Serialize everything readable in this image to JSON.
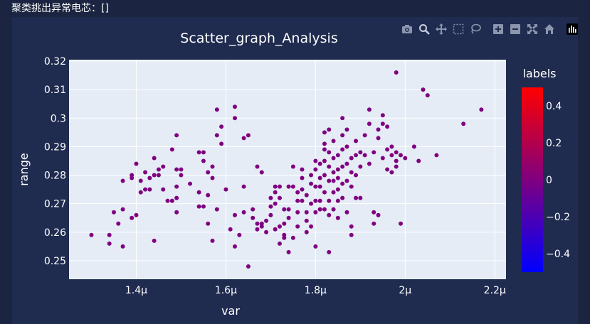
{
  "header": {
    "text": "聚类挑出异常电芯：[]"
  },
  "toolbar": {
    "items": [
      {
        "name": "camera-icon"
      },
      {
        "name": "zoom-icon"
      },
      {
        "name": "pan-icon"
      },
      {
        "name": "box-select-icon"
      },
      {
        "name": "lasso-select-icon"
      },
      {
        "name": "zoom-in-icon"
      },
      {
        "name": "zoom-out-icon"
      },
      {
        "name": "autoscale-icon"
      },
      {
        "name": "reset-axes-icon"
      },
      {
        "name": "plotly-logo-icon"
      }
    ]
  },
  "colors": {
    "page_bg": "#1b2541",
    "panel_bg": "#1f2b4f",
    "plot_bg": "#e5ecf6",
    "marker": "#800080",
    "text": "#ffffff"
  },
  "chart_data": {
    "type": "scatter",
    "title": "Scatter_graph_Analysis",
    "xlabel": "var",
    "ylabel": "range",
    "xlim": [
      1.25,
      2.225
    ],
    "ylim": [
      0.2435,
      0.3205
    ],
    "x_unit_suffix": "μ",
    "xticks": [
      1.4,
      1.6,
      1.8,
      2.0,
      2.2
    ],
    "xtick_labels": [
      "1.4μ",
      "1.6μ",
      "1.8μ",
      "2μ",
      "2.2μ"
    ],
    "yticks": [
      0.25,
      0.26,
      0.27,
      0.28,
      0.29,
      0.3,
      0.31,
      0.32
    ],
    "ytick_labels": [
      "0.25",
      "0.26",
      "0.27",
      "0.28",
      "0.29",
      "0.3",
      "0.31",
      "0.32"
    ],
    "colorbar": {
      "title": "labels",
      "ticks": [
        0.4,
        0.2,
        0,
        -0.2,
        -0.4
      ],
      "tick_labels": [
        "0.4",
        "0.2",
        "0",
        "−0.2",
        "−0.4"
      ],
      "range": [
        -0.5,
        0.5
      ],
      "colors": [
        "#0000ff",
        "#ff0000"
      ]
    },
    "points": [
      [
        1.3,
        0.259
      ],
      [
        1.34,
        0.256
      ],
      [
        1.34,
        0.259
      ],
      [
        1.35,
        0.267
      ],
      [
        1.36,
        0.263
      ],
      [
        1.37,
        0.255
      ],
      [
        1.37,
        0.268
      ],
      [
        1.37,
        0.278
      ],
      [
        1.39,
        0.265
      ],
      [
        1.39,
        0.279
      ],
      [
        1.39,
        0.28
      ],
      [
        1.4,
        0.284
      ],
      [
        1.4,
        0.266
      ],
      [
        1.41,
        0.278
      ],
      [
        1.41,
        0.274
      ],
      [
        1.42,
        0.275
      ],
      [
        1.42,
        0.281
      ],
      [
        1.43,
        0.275
      ],
      [
        1.43,
        0.279
      ],
      [
        1.44,
        0.28
      ],
      [
        1.44,
        0.286
      ],
      [
        1.44,
        0.257
      ],
      [
        1.45,
        0.28
      ],
      [
        1.45,
        0.282
      ],
      [
        1.46,
        0.283
      ],
      [
        1.46,
        0.275
      ],
      [
        1.47,
        0.271
      ],
      [
        1.48,
        0.271
      ],
      [
        1.48,
        0.289
      ],
      [
        1.49,
        0.294
      ],
      [
        1.49,
        0.282
      ],
      [
        1.49,
        0.276
      ],
      [
        1.49,
        0.272
      ],
      [
        1.49,
        0.267
      ],
      [
        1.5,
        0.282
      ],
      [
        1.5,
        0.28
      ],
      [
        1.52,
        0.277
      ],
      [
        1.54,
        0.288
      ],
      [
        1.54,
        0.274
      ],
      [
        1.54,
        0.269
      ],
      [
        1.55,
        0.288
      ],
      [
        1.55,
        0.285
      ],
      [
        1.55,
        0.269
      ],
      [
        1.56,
        0.263
      ],
      [
        1.56,
        0.273
      ],
      [
        1.56,
        0.281
      ],
      [
        1.57,
        0.283
      ],
      [
        1.57,
        0.279
      ],
      [
        1.57,
        0.257
      ],
      [
        1.58,
        0.303
      ],
      [
        1.58,
        0.294
      ],
      [
        1.58,
        0.268
      ],
      [
        1.59,
        0.297
      ],
      [
        1.59,
        0.291
      ],
      [
        1.6,
        0.275
      ],
      [
        1.61,
        0.261
      ],
      [
        1.62,
        0.255
      ],
      [
        1.62,
        0.304
      ],
      [
        1.62,
        0.3
      ],
      [
        1.62,
        0.266
      ],
      [
        1.63,
        0.259
      ],
      [
        1.64,
        0.293
      ],
      [
        1.64,
        0.276
      ],
      [
        1.64,
        0.267
      ],
      [
        1.65,
        0.294
      ],
      [
        1.65,
        0.248
      ],
      [
        1.66,
        0.268
      ],
      [
        1.66,
        0.265
      ],
      [
        1.67,
        0.263
      ],
      [
        1.67,
        0.261
      ],
      [
        1.67,
        0.283
      ],
      [
        1.68,
        0.281
      ],
      [
        1.68,
        0.263
      ],
      [
        1.68,
        0.262
      ],
      [
        1.69,
        0.264
      ],
      [
        1.69,
        0.26
      ],
      [
        1.7,
        0.266
      ],
      [
        1.7,
        0.269
      ],
      [
        1.7,
        0.272
      ],
      [
        1.71,
        0.276
      ],
      [
        1.71,
        0.274
      ],
      [
        1.71,
        0.27
      ],
      [
        1.71,
        0.261
      ],
      [
        1.72,
        0.276
      ],
      [
        1.72,
        0.272
      ],
      [
        1.72,
        0.256
      ],
      [
        1.72,
        0.262
      ],
      [
        1.73,
        0.268
      ],
      [
        1.73,
        0.263
      ],
      [
        1.73,
        0.259
      ],
      [
        1.73,
        0.258
      ],
      [
        1.74,
        0.276
      ],
      [
        1.74,
        0.268
      ],
      [
        1.74,
        0.265
      ],
      [
        1.74,
        0.253
      ],
      [
        1.75,
        0.283
      ],
      [
        1.75,
        0.276
      ],
      [
        1.75,
        0.258
      ],
      [
        1.76,
        0.274
      ],
      [
        1.76,
        0.271
      ],
      [
        1.76,
        0.267
      ],
      [
        1.76,
        0.262
      ],
      [
        1.77,
        0.282
      ],
      [
        1.77,
        0.279
      ],
      [
        1.77,
        0.275
      ],
      [
        1.77,
        0.271
      ],
      [
        1.78,
        0.273
      ],
      [
        1.78,
        0.267
      ],
      [
        1.78,
        0.264
      ],
      [
        1.78,
        0.26
      ],
      [
        1.79,
        0.28
      ],
      [
        1.79,
        0.277
      ],
      [
        1.79,
        0.27
      ],
      [
        1.79,
        0.262
      ],
      [
        1.8,
        0.285
      ],
      [
        1.8,
        0.282
      ],
      [
        1.8,
        0.276
      ],
      [
        1.8,
        0.271
      ],
      [
        1.8,
        0.267
      ],
      [
        1.8,
        0.255
      ],
      [
        1.81,
        0.284
      ],
      [
        1.81,
        0.279
      ],
      [
        1.81,
        0.276
      ],
      [
        1.81,
        0.271
      ],
      [
        1.81,
        0.268
      ],
      [
        1.82,
        0.295
      ],
      [
        1.82,
        0.291
      ],
      [
        1.82,
        0.289
      ],
      [
        1.82,
        0.285
      ],
      [
        1.82,
        0.28
      ],
      [
        1.82,
        0.274
      ],
      [
        1.82,
        0.268
      ],
      [
        1.83,
        0.296
      ],
      [
        1.83,
        0.288
      ],
      [
        1.83,
        0.283
      ],
      [
        1.83,
        0.278
      ],
      [
        1.83,
        0.271
      ],
      [
        1.83,
        0.266
      ],
      [
        1.83,
        0.253
      ],
      [
        1.84,
        0.292
      ],
      [
        1.84,
        0.286
      ],
      [
        1.84,
        0.281
      ],
      [
        1.84,
        0.278
      ],
      [
        1.84,
        0.274
      ],
      [
        1.84,
        0.268
      ],
      [
        1.85,
        0.287
      ],
      [
        1.85,
        0.282
      ],
      [
        1.85,
        0.279
      ],
      [
        1.85,
        0.275
      ],
      [
        1.85,
        0.271
      ],
      [
        1.85,
        0.265
      ],
      [
        1.86,
        0.3
      ],
      [
        1.86,
        0.294
      ],
      [
        1.86,
        0.289
      ],
      [
        1.86,
        0.283
      ],
      [
        1.86,
        0.277
      ],
      [
        1.86,
        0.272
      ],
      [
        1.87,
        0.296
      ],
      [
        1.87,
        0.29
      ],
      [
        1.87,
        0.284
      ],
      [
        1.87,
        0.278
      ],
      [
        1.87,
        0.267
      ],
      [
        1.88,
        0.286
      ],
      [
        1.88,
        0.281
      ],
      [
        1.88,
        0.276
      ],
      [
        1.88,
        0.262
      ],
      [
        1.88,
        0.259
      ],
      [
        1.89,
        0.292
      ],
      [
        1.89,
        0.287
      ],
      [
        1.89,
        0.28
      ],
      [
        1.89,
        0.272
      ],
      [
        1.9,
        0.288
      ],
      [
        1.9,
        0.283
      ],
      [
        1.9,
        0.272
      ],
      [
        1.91,
        0.294
      ],
      [
        1.91,
        0.287
      ],
      [
        1.92,
        0.303
      ],
      [
        1.92,
        0.298
      ],
      [
        1.92,
        0.284
      ],
      [
        1.93,
        0.288
      ],
      [
        1.93,
        0.267
      ],
      [
        1.93,
        0.263
      ],
      [
        1.94,
        0.296
      ],
      [
        1.94,
        0.266
      ],
      [
        1.94,
        0.293
      ],
      [
        1.95,
        0.301
      ],
      [
        1.95,
        0.298
      ],
      [
        1.95,
        0.286
      ],
      [
        1.96,
        0.297
      ],
      [
        1.96,
        0.289
      ],
      [
        1.96,
        0.282
      ],
      [
        1.97,
        0.287
      ],
      [
        1.97,
        0.281
      ],
      [
        1.97,
        0.29
      ],
      [
        1.98,
        0.316
      ],
      [
        1.98,
        0.288
      ],
      [
        1.98,
        0.285
      ],
      [
        1.98,
        0.283
      ],
      [
        1.99,
        0.263
      ],
      [
        1.99,
        0.287
      ],
      [
        2.0,
        0.286
      ],
      [
        2.02,
        0.29
      ],
      [
        2.03,
        0.285
      ],
      [
        2.04,
        0.31
      ],
      [
        2.05,
        0.308
      ],
      [
        2.07,
        0.287
      ],
      [
        2.13,
        0.298
      ],
      [
        2.17,
        0.303
      ]
    ]
  }
}
